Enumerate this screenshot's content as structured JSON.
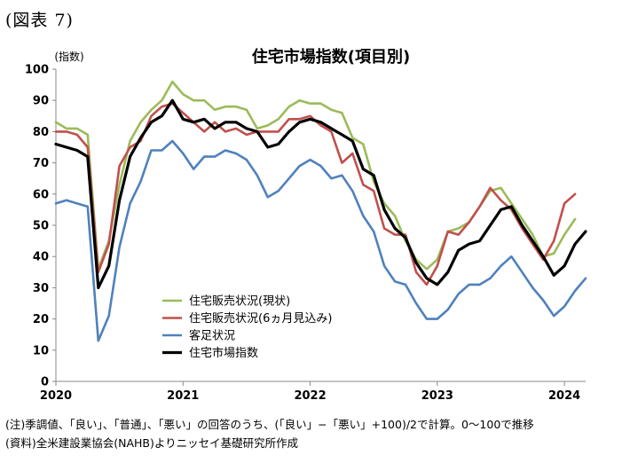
{
  "figure_label": "(図表 7)",
  "notes": [
    "(注)季調値、「良い」、「普通」、「悪い」の回答のうち、(「良い」−「悪い」+100)/2で計算。0〜100で推移",
    "(資料)全米建設業協会(NAHB)よりニッセイ基礎研究所作成"
  ],
  "chart_data": {
    "type": "line",
    "title": "住宅市場指数(項目別)",
    "ylabel": "(指数)",
    "xlabel": "",
    "ylim": [
      0,
      100
    ],
    "yticks": [
      0,
      10,
      20,
      30,
      40,
      50,
      60,
      70,
      80,
      90,
      100
    ],
    "xlim": [
      "2020-01",
      "2024-03"
    ],
    "xticks": [
      "2020",
      "2021",
      "2022",
      "2023",
      "2024"
    ],
    "x": [
      "2020-01",
      "2020-02",
      "2020-03",
      "2020-04",
      "2020-05",
      "2020-06",
      "2020-07",
      "2020-08",
      "2020-09",
      "2020-10",
      "2020-11",
      "2020-12",
      "2021-01",
      "2021-02",
      "2021-03",
      "2021-04",
      "2021-05",
      "2021-06",
      "2021-07",
      "2021-08",
      "2021-09",
      "2021-10",
      "2021-11",
      "2021-12",
      "2022-01",
      "2022-02",
      "2022-03",
      "2022-04",
      "2022-05",
      "2022-06",
      "2022-07",
      "2022-08",
      "2022-09",
      "2022-10",
      "2022-11",
      "2022-12",
      "2023-01",
      "2023-02",
      "2023-03",
      "2023-04",
      "2023-05",
      "2023-06",
      "2023-07",
      "2023-08",
      "2023-09",
      "2023-10",
      "2023-11",
      "2023-12",
      "2024-01",
      "2024-02",
      "2024-03"
    ],
    "grid": false,
    "legend_position": "bottom-left",
    "series": [
      {
        "name": "住宅販売状況(現状)",
        "color": "#9bbb59",
        "width": 2.6,
        "values": [
          83,
          81,
          81,
          79,
          36,
          45,
          63,
          77,
          83,
          87,
          90,
          96,
          92,
          90,
          90,
          87,
          88,
          88,
          87,
          81,
          82,
          84,
          88,
          90,
          89,
          89,
          87,
          86,
          78,
          76,
          64,
          57,
          53,
          45,
          39,
          36,
          39,
          48,
          49,
          51,
          56,
          61,
          62,
          57,
          52,
          47,
          40,
          41,
          47,
          52,
          null
        ]
      },
      {
        "name": "住宅販売状況(6ヵ月見込み)",
        "color": "#c0504d",
        "width": 2.6,
        "values": [
          80,
          80,
          79,
          75,
          35,
          44,
          69,
          75,
          77,
          85,
          88,
          89,
          86,
          83,
          80,
          83,
          80,
          81,
          79,
          80,
          80,
          80,
          84,
          84,
          85,
          82,
          80,
          70,
          73,
          63,
          61,
          49,
          47,
          47,
          35,
          31,
          37,
          48,
          47,
          51,
          56,
          62,
          58,
          55,
          49,
          44,
          39,
          45,
          57,
          60,
          null
        ]
      },
      {
        "name": "客足状況",
        "color": "#4f81bd",
        "width": 2.6,
        "values": [
          57,
          58,
          57,
          56,
          13,
          21,
          43,
          57,
          64,
          74,
          74,
          77,
          73,
          68,
          72,
          72,
          74,
          73,
          71,
          66,
          59,
          61,
          65,
          69,
          71,
          69,
          65,
          66,
          61,
          53,
          48,
          37,
          32,
          31,
          25,
          20,
          20,
          23,
          28,
          31,
          31,
          33,
          37,
          40,
          35,
          30,
          26,
          21,
          24,
          29,
          33
        ]
      },
      {
        "name": "住宅市場指数",
        "color": "#000000",
        "width": 3.2,
        "values": [
          76,
          75,
          74,
          72,
          30,
          37,
          58,
          72,
          78,
          83,
          85,
          90,
          84,
          83,
          84,
          81,
          83,
          83,
          81,
          80,
          75,
          76,
          80,
          83,
          84,
          83,
          81,
          79,
          77,
          68,
          66,
          55,
          49,
          46,
          38,
          33,
          31,
          35,
          42,
          44,
          45,
          50,
          55,
          56,
          50,
          45,
          40,
          34,
          37,
          44,
          48
        ]
      }
    ]
  }
}
